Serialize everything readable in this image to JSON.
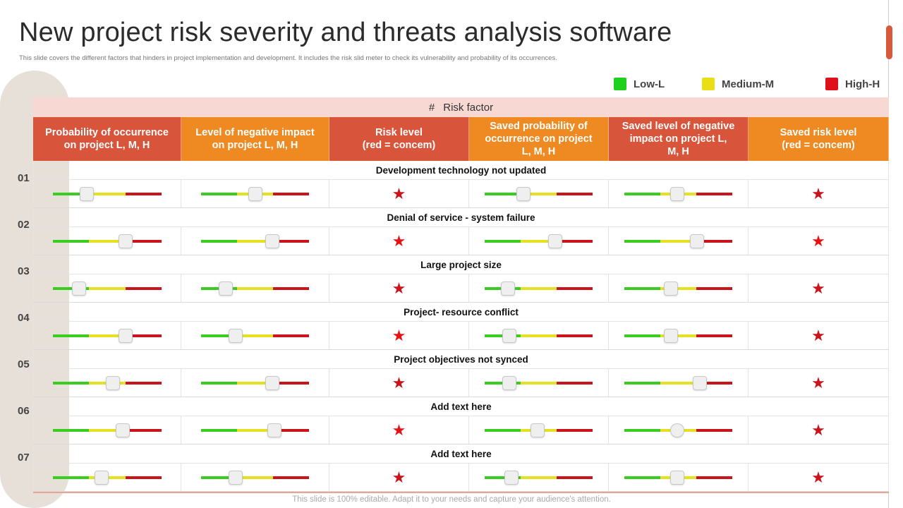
{
  "title": "New project risk severity and threats analysis software",
  "subtitle": "This slide covers the different factors that hinders in project implementation  and development. It includes the risk slid meter to check its vulnerability and probability of its occurrences.",
  "legend": [
    {
      "label": "Low-L",
      "color": "#1fd11f"
    },
    {
      "label": "Medium-M",
      "color": "#e8e015"
    },
    {
      "label": "High-H",
      "color": "#e0101a"
    }
  ],
  "risk_factor_header": {
    "hash": "#",
    "label": "Risk factor"
  },
  "columns": [
    {
      "label": "Probability of occurrence\non project L, M, H",
      "color": "red"
    },
    {
      "label": "Level of negative impact\non project L, M, H",
      "color": "orange"
    },
    {
      "label": "Risk level\n(red = concem)",
      "color": "red"
    },
    {
      "label": "Saved probability of\noccurrence on project\nL, M, H",
      "color": "orange"
    },
    {
      "label": "Saved level of negative\nimpact on project L,\nM, H",
      "color": "red"
    },
    {
      "label": "Saved risk level\n(red = concem)",
      "color": "orange"
    }
  ],
  "rows": [
    {
      "num": "01",
      "name": "Development technology not updated",
      "sliders": [
        0.31,
        0.5,
        0.36,
        0.49
      ],
      "risk_star": "dark",
      "saved_star": "dark",
      "round_knob": [
        false,
        false,
        false,
        false
      ]
    },
    {
      "num": "02",
      "name": "Denial of service - system failure",
      "sliders": [
        0.67,
        0.66,
        0.65,
        0.67
      ],
      "risk_star": "bright",
      "saved_star": "bright",
      "round_knob": [
        false,
        false,
        false,
        false
      ]
    },
    {
      "num": "03",
      "name": "Large project size",
      "sliders": [
        0.24,
        0.23,
        0.22,
        0.43
      ],
      "risk_star": "dark",
      "saved_star": "dark",
      "round_knob": [
        false,
        false,
        false,
        false
      ]
    },
    {
      "num": "04",
      "name": "Project- resource conflict",
      "sliders": [
        0.67,
        0.32,
        0.23,
        0.43
      ],
      "risk_star": "bright",
      "saved_star": "dark",
      "round_knob": [
        false,
        false,
        false,
        false
      ]
    },
    {
      "num": "05",
      "name": "Project objectives not synced",
      "sliders": [
        0.55,
        0.66,
        0.23,
        0.7
      ],
      "risk_star": "dark",
      "saved_star": "dark",
      "round_knob": [
        false,
        false,
        false,
        false
      ]
    },
    {
      "num": "06",
      "name": "Add text here",
      "sliders": [
        0.64,
        0.68,
        0.49,
        0.49
      ],
      "risk_star": "bright",
      "saved_star": "dark",
      "round_knob": [
        false,
        false,
        false,
        true
      ]
    },
    {
      "num": "07",
      "name": "Add text here",
      "sliders": [
        0.45,
        0.32,
        0.25,
        0.49
      ],
      "risk_star": "dark",
      "saved_star": "dark",
      "round_knob": [
        false,
        false,
        false,
        false
      ]
    }
  ],
  "footer": "This slide is 100% editable. Adapt it to your needs and capture your audience's attention."
}
